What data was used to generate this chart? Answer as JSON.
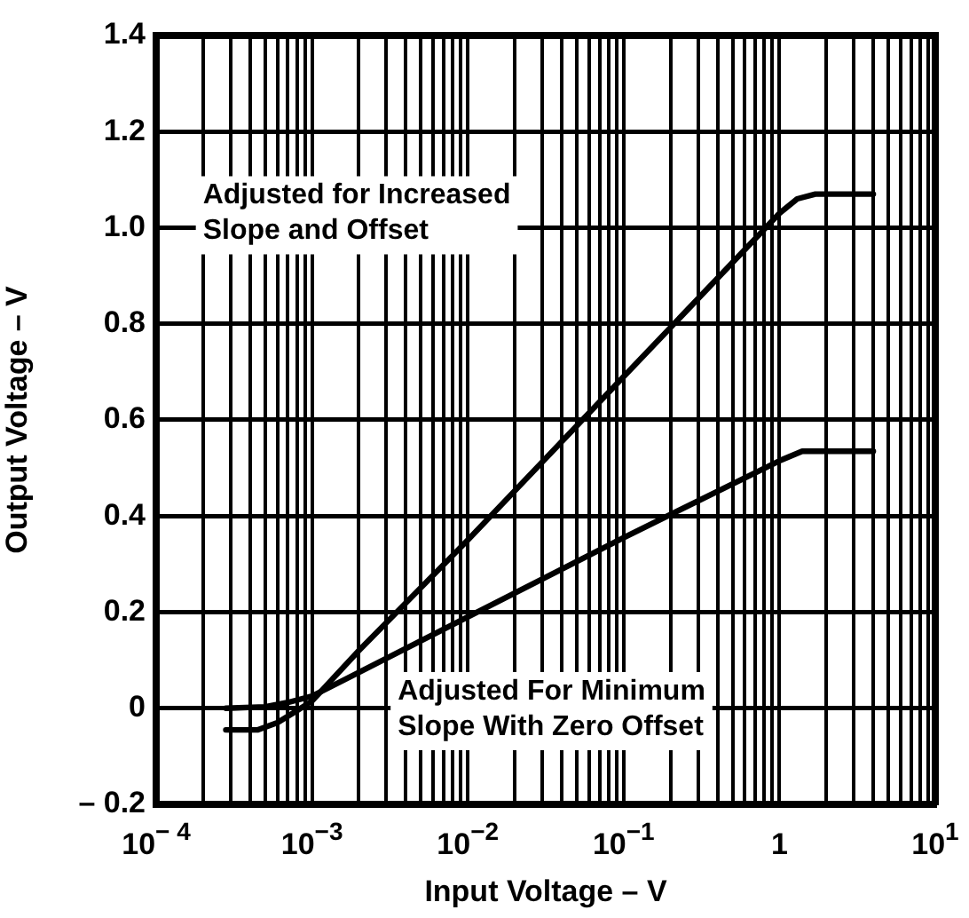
{
  "chart_data": {
    "type": "line",
    "xlabel": "Input Voltage – V",
    "ylabel": "Output Voltage – V",
    "log": "x",
    "grid": true,
    "legend": false,
    "marker": "none",
    "line_style": "solid",
    "xlim": [
      0.0001,
      10
    ],
    "ylim": [
      -0.2,
      1.4
    ],
    "xticks": [
      {
        "value": 0.0001,
        "label": "10$^{− 4}$"
      },
      {
        "value": 0.0002,
        "label": null
      },
      {
        "value": 0.0003,
        "label": null
      },
      {
        "value": 0.0004,
        "label": null
      },
      {
        "value": 0.0005,
        "label": null
      },
      {
        "value": 0.0006,
        "label": null
      },
      {
        "value": 0.0007,
        "label": null
      },
      {
        "value": 0.0008,
        "label": null
      },
      {
        "value": 0.0009,
        "label": null
      },
      {
        "value": 0.001,
        "label": "10$^{−3}$"
      },
      {
        "value": 0.002,
        "label": null
      },
      {
        "value": 0.003,
        "label": null
      },
      {
        "value": 0.004,
        "label": null
      },
      {
        "value": 0.005,
        "label": null
      },
      {
        "value": 0.006,
        "label": null
      },
      {
        "value": 0.007,
        "label": null
      },
      {
        "value": 0.008,
        "label": null
      },
      {
        "value": 0.009,
        "label": null
      },
      {
        "value": 0.01,
        "label": "10$^{−2}$"
      },
      {
        "value": 0.02,
        "label": null
      },
      {
        "value": 0.03,
        "label": null
      },
      {
        "value": 0.04,
        "label": null
      },
      {
        "value": 0.05,
        "label": null
      },
      {
        "value": 0.06,
        "label": null
      },
      {
        "value": 0.07,
        "label": null
      },
      {
        "value": 0.08,
        "label": null
      },
      {
        "value": 0.09,
        "label": null
      },
      {
        "value": 0.1,
        "label": "10$^{−1}$"
      },
      {
        "value": 0.2,
        "label": null
      },
      {
        "value": 0.3,
        "label": null
      },
      {
        "value": 0.4,
        "label": null
      },
      {
        "value": 0.5,
        "label": null
      },
      {
        "value": 0.6,
        "label": null
      },
      {
        "value": 0.7,
        "label": null
      },
      {
        "value": 0.8,
        "label": null
      },
      {
        "value": 0.9,
        "label": null
      },
      {
        "value": 1,
        "label": "1"
      },
      {
        "value": 2,
        "label": null
      },
      {
        "value": 3,
        "label": null
      },
      {
        "value": 4,
        "label": null
      },
      {
        "value": 5,
        "label": null
      },
      {
        "value": 6,
        "label": null
      },
      {
        "value": 7,
        "label": null
      },
      {
        "value": 8,
        "label": null
      },
      {
        "value": 9,
        "label": null
      },
      {
        "value": 10,
        "label": "10$^{1}$"
      }
    ],
    "yticks": [
      {
        "value": -0.2,
        "label": "– 0.2"
      },
      0,
      0.2,
      0.4,
      0.6,
      0.8,
      {
        "value": 1,
        "label": "1.0"
      },
      1.2,
      1.4
    ],
    "annotations": [
      "Adjusted for Increased Slope and Offset",
      "Adjusted For Minimum Slope With Zero Offset"
    ],
    "series": [
      {
        "color": "#000000",
        "x": [
          0.00028,
          0.00045,
          0.0006,
          0.0008,
          0.001,
          0.002,
          0.01,
          0.1,
          1,
          1.3,
          1.7,
          4
        ],
        "values": [
          -0.045,
          -0.045,
          -0.03,
          -0.005,
          0.015,
          0.12,
          0.35,
          0.69,
          1.03,
          1.06,
          1.07,
          1.07
        ]
      },
      {
        "color": "#000000",
        "x": [
          0.00028,
          0.0005,
          0.0007,
          0.001,
          0.01,
          0.1,
          1,
          1.4,
          4
        ],
        "values": [
          0,
          0.003,
          0.012,
          0.025,
          0.19,
          0.355,
          0.515,
          0.535,
          0.535
        ]
      }
    ]
  }
}
